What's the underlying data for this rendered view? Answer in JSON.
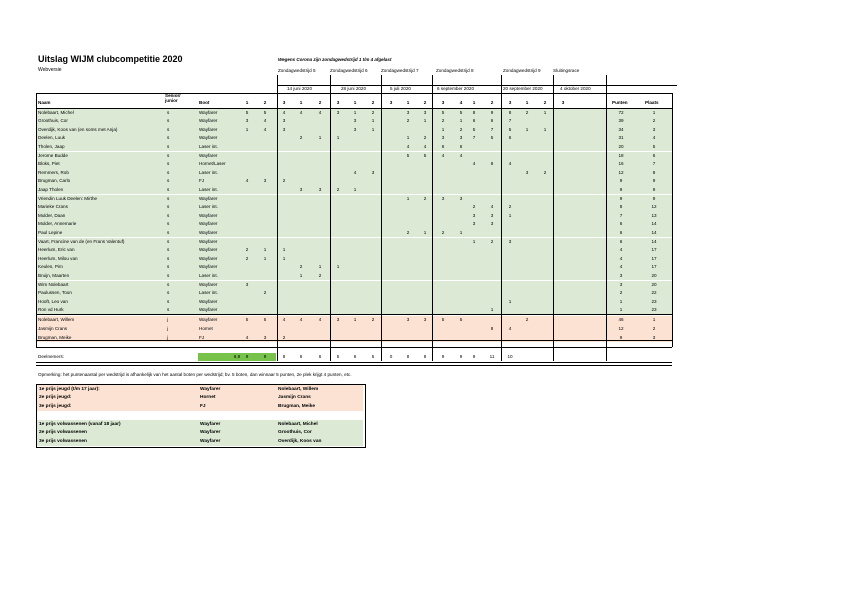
{
  "title": "Uitslag WIJM clubcompetitie 2020",
  "subtitle": "Webversie",
  "notice": "Wegens Corona zijn zondagwedstrijd 1 t/m 4 afgelast",
  "races": [
    {
      "name": "Zondagwedstrijd 5",
      "date": "14 juni 2020"
    },
    {
      "name": "Zondagwedstrijd 6",
      "date": "28 juni 2020"
    },
    {
      "name": "Zondagwedstrijd 7",
      "date": "5 juli 2020"
    },
    {
      "name": "Zondagwedstrijd 8",
      "date": "6 september 2020"
    },
    {
      "name": "Zondagwedstrijd 9",
      "date": "20 september 2020"
    },
    {
      "name": "Sluitingsrace",
      "date": "4 oktober 2020"
    }
  ],
  "headers": {
    "name": "Naam",
    "senior": "Senior/ junior",
    "boot": "Boot",
    "points": "Punten",
    "place": "Plaats",
    "nums": [
      "1",
      "2",
      "3",
      "1",
      "2",
      "3",
      "1",
      "2",
      "3",
      "1",
      "2",
      "3",
      "4",
      "1",
      "2",
      "3",
      "1",
      "2",
      "3"
    ]
  },
  "rows": [
    {
      "name": "Nolebaart, Michel",
      "sj": "s",
      "boot": "Wayfarer",
      "s": [
        "5",
        "5",
        "4",
        "4",
        "4",
        "3",
        "1",
        "2",
        "",
        "3",
        "3",
        "5",
        "5",
        "8",
        "9",
        "8",
        "2",
        "1",
        ""
      ],
      "pts": "72",
      "pl": "1"
    },
    {
      "name": "Groothuis, Cor",
      "sj": "s",
      "boot": "Wayfarer",
      "s": [
        "3",
        "4",
        "3",
        "",
        "",
        "",
        "3",
        "1",
        "",
        "2",
        "1",
        "2",
        "1",
        "6",
        "6",
        "7",
        "",
        "",
        ""
      ],
      "pts": "39",
      "pl": "2"
    },
    {
      "name": "Overdijk, Koos van (en soms met Anja)",
      "sj": "s",
      "boot": "Wayfarer",
      "s": [
        "1",
        "4",
        "3",
        "",
        "",
        "",
        "3",
        "1",
        "",
        "",
        "",
        "1",
        "2",
        "5",
        "7",
        "5",
        "1",
        "1",
        ""
      ],
      "pts": "34",
      "pl": "3"
    },
    {
      "name": "Deelen, Luuk",
      "sj": "s",
      "boot": "Wayfarer",
      "s": [
        "",
        "",
        "",
        "2",
        "1",
        "1",
        "",
        "",
        "",
        "1",
        "2",
        "3",
        "3",
        "7",
        "5",
        "6",
        "",
        "",
        ""
      ],
      "pts": "31",
      "pl": "4"
    },
    {
      "name": "Tholen, Jaap",
      "sj": "s",
      "boot": "Laser int.",
      "s": [
        "",
        "",
        "",
        "",
        "",
        "",
        "",
        "",
        "",
        "4",
        "4",
        "6",
        "6",
        "",
        "",
        "",
        "",
        "",
        ""
      ],
      "pts": "20",
      "pl": "5"
    },
    {
      "name": "Jerome Budde",
      "sj": "s",
      "boot": "Wayfarer",
      "s": [
        "",
        "",
        "",
        "",
        "",
        "",
        "",
        "",
        "",
        "5",
        "5",
        "4",
        "4",
        "",
        "",
        "",
        "",
        "",
        ""
      ],
      "pts": "18",
      "pl": "6"
    },
    {
      "name": "Bloks, Piet",
      "sj": "s",
      "boot": "Hornet/Laser",
      "s": [
        "",
        "",
        "",
        "",
        "",
        "",
        "",
        "",
        "",
        "",
        "",
        "",
        "",
        "4",
        "8",
        "4",
        "",
        "",
        ""
      ],
      "pts": "16",
      "pl": "7"
    },
    {
      "name": "Remmers, Rob",
      "sj": "s",
      "boot": "Laser int.",
      "s": [
        "",
        "",
        "",
        "",
        "",
        "",
        "4",
        "3",
        "",
        "",
        "",
        "",
        "",
        "",
        "",
        "",
        "3",
        "2",
        ""
      ],
      "pts": "12",
      "pl": "8"
    },
    {
      "name": "Brugman, Carlo",
      "sj": "s",
      "boot": "FJ",
      "s": [
        "4",
        "3",
        "2",
        "",
        "",
        "",
        "",
        "",
        "",
        "",
        "",
        "",
        "",
        "",
        "",
        "",
        "",
        "",
        ""
      ],
      "pts": "9",
      "pl": "9"
    },
    {
      "name": "Jaap Tholen",
      "sj": "s",
      "boot": "Laser int.",
      "s": [
        "",
        "",
        "",
        "3",
        "3",
        "2",
        "1",
        "",
        "",
        "",
        "",
        "",
        "",
        "",
        "",
        "",
        "",
        "",
        ""
      ],
      "pts": "9",
      "pl": "9"
    },
    {
      "name": "Vriendin Luuk Deelen: Mirthe",
      "sj": "s",
      "boot": "Wayfarer",
      "s": [
        "",
        "",
        "",
        "",
        "",
        "",
        "",
        "",
        "",
        "1",
        "2",
        "3",
        "3",
        "",
        "",
        "",
        "",
        "",
        ""
      ],
      "pts": "9",
      "pl": "9"
    },
    {
      "name": "Marieke Crans",
      "sj": "s",
      "boot": "Laser int.",
      "s": [
        "",
        "",
        "",
        "",
        "",
        "",
        "",
        "",
        "",
        "",
        "",
        "",
        "",
        "2",
        "4",
        "2",
        "",
        "",
        ""
      ],
      "pts": "8",
      "pl": "12"
    },
    {
      "name": "Mulder, Daan",
      "sj": "s",
      "boot": "Wayfarer",
      "s": [
        "",
        "",
        "",
        "",
        "",
        "",
        "",
        "",
        "",
        "",
        "",
        "",
        "",
        "3",
        "3",
        "1",
        "",
        "",
        ""
      ],
      "pts": "7",
      "pl": "13"
    },
    {
      "name": "Mulder, Annemarie",
      "sj": "s",
      "boot": "Wayfarer",
      "s": [
        "",
        "",
        "",
        "",
        "",
        "",
        "",
        "",
        "",
        "",
        "",
        "",
        "",
        "3",
        "3",
        "",
        "",
        "",
        ""
      ],
      "pts": "6",
      "pl": "14"
    },
    {
      "name": "Paul Lepine",
      "sj": "s",
      "boot": "Wayfarer",
      "s": [
        "",
        "",
        "",
        "",
        "",
        "",
        "",
        "",
        "",
        "2",
        "1",
        "2",
        "1",
        "",
        "",
        "",
        "",
        "",
        ""
      ],
      "pts": "6",
      "pl": "14"
    },
    {
      "name": "Vaart, Francine van de (en Frans Valentuf)",
      "sj": "s",
      "boot": "Wayfarer",
      "s": [
        "",
        "",
        "",
        "",
        "",
        "",
        "",
        "",
        "",
        "",
        "",
        "",
        "",
        "1",
        "2",
        "3",
        "",
        "",
        ""
      ],
      "pts": "6",
      "pl": "14"
    },
    {
      "name": "Heerlum, Eric van",
      "sj": "s",
      "boot": "Wayfarer",
      "s": [
        "2",
        "1",
        "1",
        "",
        "",
        "",
        "",
        "",
        "",
        "",
        "",
        "",
        "",
        "",
        "",
        "",
        "",
        "",
        ""
      ],
      "pts": "4",
      "pl": "17"
    },
    {
      "name": "Heerlum, Milou van",
      "sj": "s",
      "boot": "Wayfarer",
      "s": [
        "2",
        "1",
        "1",
        "",
        "",
        "",
        "",
        "",
        "",
        "",
        "",
        "",
        "",
        "",
        "",
        "",
        "",
        "",
        ""
      ],
      "pts": "4",
      "pl": "17"
    },
    {
      "name": "Keulen, Pim",
      "sj": "s",
      "boot": "Wayfarer",
      "s": [
        "",
        "",
        "",
        "2",
        "1",
        "1",
        "",
        "",
        "",
        "",
        "",
        "",
        "",
        "",
        "",
        "",
        "",
        "",
        ""
      ],
      "pts": "4",
      "pl": "17"
    },
    {
      "name": "Bruijn, Maarten",
      "sj": "s",
      "boot": "Laser int.",
      "s": [
        "",
        "",
        "",
        "1",
        "2",
        "",
        "",
        "",
        "",
        "",
        "",
        "",
        "",
        "",
        "",
        "",
        "",
        "",
        ""
      ],
      "pts": "3",
      "pl": "20"
    },
    {
      "name": "Wim Nolebaart",
      "sj": "s",
      "boot": "Wayfarer",
      "s": [
        "3",
        "",
        "",
        "",
        "",
        "",
        "",
        "",
        "",
        "",
        "",
        "",
        "",
        "",
        "",
        "",
        "",
        "",
        ""
      ],
      "pts": "3",
      "pl": "20"
    },
    {
      "name": "Paulussen, Toon",
      "sj": "s",
      "boot": "Laser int.",
      "s": [
        "",
        "2",
        "",
        "",
        "",
        "",
        "",
        "",
        "",
        "",
        "",
        "",
        "",
        "",
        "",
        "",
        "",
        "",
        ""
      ],
      "pts": "2",
      "pl": "22"
    },
    {
      "name": "Hooft, Leo van",
      "sj": "s",
      "boot": "Wayfarer",
      "s": [
        "",
        "",
        "",
        "",
        "",
        "",
        "",
        "",
        "",
        "",
        "",
        "",
        "",
        "",
        "",
        "1",
        "",
        "",
        ""
      ],
      "pts": "1",
      "pl": "23"
    },
    {
      "name": "Ron vd Hurk",
      "sj": "s",
      "boot": "Wayfarer",
      "s": [
        "",
        "",
        "",
        "",
        "",
        "",
        "",
        "",
        "",
        "",
        "",
        "",
        "",
        "",
        "1",
        "",
        "",
        "",
        ""
      ],
      "pts": "1",
      "pl": "23"
    },
    {
      "name": "Nolebaart, Willem",
      "sj": "j",
      "boot": "Wayfarer",
      "s": [
        "5",
        "5",
        "4",
        "4",
        "4",
        "3",
        "1",
        "2",
        "",
        "3",
        "3",
        "5",
        "5",
        "",
        "",
        "",
        "2",
        "",
        ""
      ],
      "pts": "46",
      "pl": "1"
    },
    {
      "name": "Jasmijn Crans",
      "sj": "j",
      "boot": "Hornet",
      "s": [
        "",
        "",
        "",
        "",
        "",
        "",
        "",
        "",
        "",
        "",
        "",
        "",
        "",
        "",
        "8",
        "4",
        "",
        "",
        ""
      ],
      "pts": "12",
      "pl": "2"
    },
    {
      "name": "Brugman, Meike",
      "sj": "j",
      "boot": "FJ",
      "s": [
        "4",
        "3",
        "2",
        "",
        "",
        "",
        "",
        "",
        "",
        "",
        "",
        "",
        "",
        "",
        "",
        "",
        "",
        "",
        ""
      ],
      "pts": "9",
      "pl": "3"
    }
  ],
  "participants": {
    "label": "Deelnemers:",
    "avg": "6,9",
    "counts": [
      "9",
      "9",
      "8",
      "6",
      "6",
      "5",
      "6",
      "5",
      "0",
      "8",
      "8",
      "9",
      "9",
      "9",
      "11",
      "10",
      "",
      "",
      ""
    ]
  },
  "remark": "Opmerking: het puntenaantal per wedstrijd is afhankelijk van het aantal boten per wedstrijd; bv. 5 boten, dan winnaar 5 punten, 2e plek krijgt 4 punten, etc.",
  "prizes_jeugd": [
    {
      "label": "1e prijs jeugd (t/m 17 jaar):",
      "boot": "Wayfarer",
      "name": "Nolebaart, Willem"
    },
    {
      "label": "2e prijs jeugd:",
      "boot": "Hornet",
      "name": "Jasmijn Crans"
    },
    {
      "label": "3e prijs jeugd:",
      "boot": "FJ",
      "name": "Brugman, Meike"
    }
  ],
  "prizes_vol": [
    {
      "label": "1e prijs volwassenen (vanaf 18 jaar)",
      "boot": "Wayfarer",
      "name": "Nolebaart, Michel"
    },
    {
      "label": "2e prijs volwassenen",
      "boot": "Wayfarer",
      "name": "Groothuis, Cor"
    },
    {
      "label": "3e prijs volwassenen",
      "boot": "Wayfarer",
      "name": "Overdijk, Koos van"
    }
  ],
  "colors": {
    "green": "#dbe9d5",
    "pink": "#fbe2d3",
    "bar": "#76c24a"
  }
}
